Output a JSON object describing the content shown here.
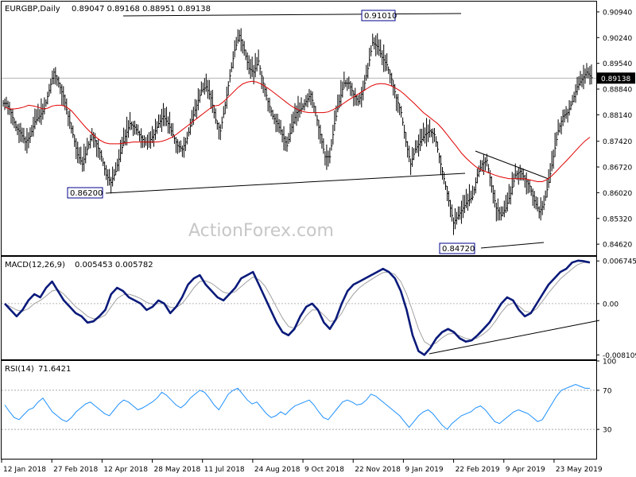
{
  "header": {
    "symbol": "EURGBP,Daily",
    "ohlc": "0.89047 0.89168 0.88951 0.89138"
  },
  "watermark": "ActionForex.com",
  "chart_data": [
    {
      "type": "bar",
      "name": "EURGBP,Daily",
      "ylim": [
        0.8432,
        0.9122
      ],
      "yticks": [
        "0.90940",
        "0.90240",
        "0.89540",
        "0.88840",
        "0.88140",
        "0.87420",
        "0.86720",
        "0.86020",
        "0.85320",
        "0.84620"
      ],
      "last_price": "0.89138",
      "close": [
        0.8845,
        0.882,
        0.878,
        0.8765,
        0.874,
        0.8755,
        0.8795,
        0.881,
        0.883,
        0.888,
        0.893,
        0.89,
        0.8865,
        0.881,
        0.876,
        0.8705,
        0.868,
        0.872,
        0.876,
        0.8735,
        0.87,
        0.865,
        0.863,
        0.866,
        0.871,
        0.8755,
        0.879,
        0.878,
        0.876,
        0.874,
        0.874,
        0.876,
        0.879,
        0.881,
        0.879,
        0.876,
        0.873,
        0.872,
        0.875,
        0.88,
        0.884,
        0.888,
        0.889,
        0.886,
        0.88,
        0.877,
        0.884,
        0.892,
        0.899,
        0.903,
        0.899,
        0.894,
        0.893,
        0.896,
        0.89,
        0.885,
        0.881,
        0.879,
        0.876,
        0.873,
        0.878,
        0.882,
        0.883,
        0.885,
        0.887,
        0.882,
        0.876,
        0.87,
        0.87,
        0.879,
        0.885,
        0.89,
        0.89,
        0.887,
        0.885,
        0.888,
        0.894,
        0.901,
        0.9,
        0.897,
        0.895,
        0.891,
        0.886,
        0.882,
        0.874,
        0.868,
        0.872,
        0.874,
        0.876,
        0.877,
        0.876,
        0.87,
        0.864,
        0.858,
        0.852,
        0.854,
        0.856,
        0.858,
        0.859,
        0.865,
        0.868,
        0.869,
        0.862,
        0.856,
        0.854,
        0.856,
        0.86,
        0.865,
        0.866,
        0.864,
        0.862,
        0.858,
        0.855,
        0.857,
        0.863,
        0.87,
        0.877,
        0.881,
        0.882,
        0.885,
        0.889,
        0.891,
        0.893,
        0.8915
      ],
      "moving_average": [
        0.8835,
        0.883,
        0.883,
        0.8832,
        0.8835,
        0.884,
        0.8838,
        0.8835,
        0.883,
        0.8832,
        0.8838,
        0.884,
        0.884,
        0.8835,
        0.8825,
        0.881,
        0.8795,
        0.878,
        0.8767,
        0.8755,
        0.8745,
        0.8738,
        0.8735,
        0.8735,
        0.8735,
        0.8737,
        0.8738,
        0.874,
        0.874,
        0.874,
        0.874,
        0.874,
        0.874,
        0.8742,
        0.8746,
        0.8752,
        0.876,
        0.877,
        0.878,
        0.879,
        0.88,
        0.881,
        0.882,
        0.883,
        0.8838,
        0.884,
        0.885,
        0.8862,
        0.8875,
        0.8888,
        0.8898,
        0.8903,
        0.8905,
        0.8903,
        0.8897,
        0.8889,
        0.888,
        0.887,
        0.886,
        0.885,
        0.884,
        0.8832,
        0.8826,
        0.8822,
        0.882,
        0.882,
        0.882,
        0.882,
        0.8822,
        0.8828,
        0.8835,
        0.8843,
        0.8852,
        0.886,
        0.8868,
        0.8876,
        0.8884,
        0.8892,
        0.8897,
        0.8899,
        0.8898,
        0.8894,
        0.8888,
        0.888,
        0.887,
        0.8858,
        0.8846,
        0.8833,
        0.882,
        0.881,
        0.88,
        0.879,
        0.8776,
        0.876,
        0.8743,
        0.8727,
        0.871,
        0.8696,
        0.8684,
        0.8673,
        0.8665,
        0.866,
        0.8655,
        0.865,
        0.8646,
        0.8643,
        0.864,
        0.864,
        0.864,
        0.864,
        0.8638,
        0.8635,
        0.8632,
        0.8632,
        0.8638,
        0.8648,
        0.8661,
        0.8675,
        0.8688,
        0.8702,
        0.8716,
        0.873,
        0.8743,
        0.8753
      ],
      "annotations": [
        "0.86200",
        "0.91010",
        "0.84720"
      ]
    },
    {
      "type": "line",
      "name": "MACD(12,26,9)",
      "values_label": "0.005453 0.005782",
      "yticks": [
        "0.006745",
        "0.00",
        "-0.008109"
      ],
      "ylim": [
        -0.0088,
        0.0074
      ],
      "macd": [
        0.0,
        -0.001,
        -0.002,
        -0.001,
        0.0005,
        0.0015,
        0.001,
        0.0025,
        0.0035,
        0.002,
        0.0005,
        -0.0005,
        -0.0015,
        -0.002,
        -0.003,
        -0.0028,
        -0.002,
        -0.001,
        0.0015,
        0.0025,
        0.002,
        0.001,
        0.0005,
        0.0,
        -0.001,
        -0.0005,
        0.0005,
        0.0,
        -0.0015,
        -0.0005,
        0.001,
        0.003,
        0.004,
        0.0045,
        0.003,
        0.002,
        0.001,
        0.0005,
        0.0015,
        0.0025,
        0.004,
        0.0045,
        0.005,
        0.003,
        0.001,
        -0.001,
        -0.003,
        -0.0045,
        -0.005,
        -0.004,
        -0.002,
        -0.0005,
        0.0,
        -0.001,
        -0.003,
        -0.004,
        -0.0025,
        0.0,
        0.002,
        0.003,
        0.0035,
        0.004,
        0.0045,
        0.005,
        0.0055,
        0.005,
        0.004,
        0.002,
        -0.001,
        -0.005,
        -0.0075,
        -0.0081,
        -0.007,
        -0.0055,
        -0.0045,
        -0.004,
        -0.0045,
        -0.0055,
        -0.006,
        -0.0058,
        -0.005,
        -0.004,
        -0.003,
        -0.0015,
        0.0,
        0.001,
        0.0005,
        -0.001,
        -0.002,
        -0.0015,
        0.0,
        0.0015,
        0.003,
        0.004,
        0.005,
        0.0055,
        0.0065,
        0.0068,
        0.0067,
        0.0065
      ],
      "signal": [
        0.0,
        -0.0005,
        -0.001,
        -0.0012,
        -0.0008,
        0.0,
        0.0005,
        0.0012,
        0.002,
        0.0022,
        0.0015,
        0.0005,
        -0.0005,
        -0.0012,
        -0.002,
        -0.0024,
        -0.0023,
        -0.0018,
        -0.0005,
        0.0008,
        0.0014,
        0.0015,
        0.0012,
        0.0008,
        0.0002,
        -0.0001,
        0.0,
        0.0,
        -0.0006,
        -0.0006,
        0.0,
        0.0012,
        0.0025,
        0.0035,
        0.0036,
        0.0032,
        0.0025,
        0.0018,
        0.0016,
        0.0019,
        0.0027,
        0.0035,
        0.0042,
        0.0038,
        0.0028,
        0.0012,
        -0.0006,
        -0.0023,
        -0.0036,
        -0.0039,
        -0.0032,
        -0.0019,
        -0.001,
        -0.001,
        -0.0018,
        -0.0028,
        -0.0027,
        -0.0015,
        0.0002,
        0.0015,
        0.0025,
        0.0032,
        0.0038,
        0.0044,
        0.0049,
        0.005,
        0.0046,
        0.0035,
        0.0015,
        -0.0012,
        -0.004,
        -0.006,
        -0.0066,
        -0.0062,
        -0.0054,
        -0.0048,
        -0.0047,
        -0.0051,
        -0.0055,
        -0.0057,
        -0.0054,
        -0.0048,
        -0.004,
        -0.0028,
        -0.0014,
        -0.0003,
        0.0001,
        -0.0004,
        -0.0012,
        -0.0014,
        -0.0008,
        0.0004,
        0.0017,
        0.0028,
        0.0039,
        0.0047,
        0.0055,
        0.0062,
        0.0065,
        0.0065
      ]
    },
    {
      "type": "line",
      "name": "RSI(14)",
      "value_label": "71.6421",
      "ylim": [
        0,
        100
      ],
      "yticks": [
        "100",
        "70",
        "30"
      ],
      "levels": [
        70,
        30
      ],
      "values": [
        55,
        48,
        42,
        40,
        45,
        50,
        52,
        58,
        62,
        55,
        48,
        44,
        40,
        38,
        42,
        48,
        52,
        56,
        58,
        54,
        50,
        46,
        44,
        50,
        56,
        60,
        58,
        54,
        50,
        52,
        55,
        58,
        62,
        68,
        65,
        60,
        55,
        52,
        56,
        62,
        66,
        70,
        68,
        62,
        55,
        50,
        58,
        66,
        70,
        72,
        66,
        60,
        56,
        58,
        52,
        46,
        42,
        44,
        48,
        45,
        50,
        54,
        56,
        58,
        60,
        55,
        48,
        42,
        40,
        46,
        52,
        58,
        60,
        58,
        55,
        56,
        60,
        66,
        64,
        60,
        56,
        52,
        48,
        44,
        38,
        32,
        38,
        44,
        48,
        50,
        46,
        40,
        34,
        30,
        36,
        40,
        44,
        46,
        48,
        52,
        54,
        50,
        44,
        38,
        36,
        40,
        44,
        48,
        50,
        48,
        46,
        42,
        38,
        40,
        48,
        56,
        64,
        70,
        72,
        74,
        76,
        74,
        72,
        72
      ]
    },
    {
      "type": "line",
      "name": "x-axis dates",
      "categories": [
        "12 Jan 2018",
        "27 Feb 2018",
        "12 Apr 2018",
        "28 May 2018",
        "11 Jul 2018",
        "24 Aug 2018",
        "9 Oct 2018",
        "22 Nov 2018",
        "9 Jan 2019",
        "22 Feb 2019",
        "9 Apr 2019",
        "23 May 2019"
      ]
    }
  ]
}
